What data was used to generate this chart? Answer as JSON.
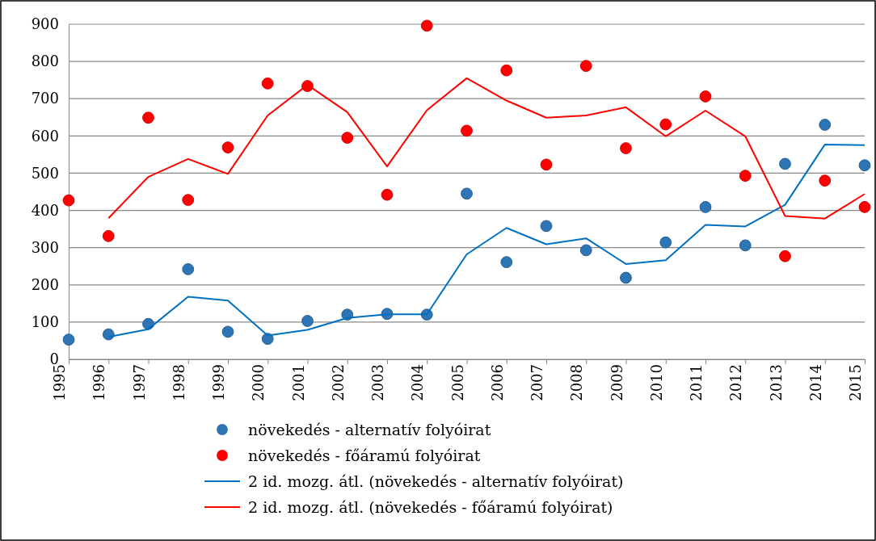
{
  "chart_data": {
    "type": "scatter",
    "categories": [
      "1995",
      "1996",
      "1997",
      "1998",
      "1999",
      "2000",
      "2001",
      "2002",
      "2003",
      "2004",
      "2005",
      "2006",
      "2007",
      "2008",
      "2009",
      "2010",
      "2011",
      "2012",
      "2013",
      "2014",
      "2015"
    ],
    "ylim": [
      0,
      900
    ],
    "yticks": [
      0,
      100,
      200,
      300,
      400,
      500,
      600,
      700,
      800,
      900
    ],
    "grid": "y",
    "legend": "bottom",
    "series": [
      {
        "name": "növekedés - alternatív folyóirat",
        "marker": "circle",
        "color": "#2e75b6",
        "values": [
          53,
          67,
          95,
          242,
          74,
          55,
          103,
          120,
          122,
          120,
          445,
          261,
          358,
          293,
          219,
          314,
          409,
          306,
          525,
          630,
          521
        ]
      },
      {
        "name": "növekedés - főáramú folyóirat",
        "marker": "circle",
        "color": "#ff0000",
        "values": [
          427,
          331,
          649,
          428,
          569,
          741,
          734,
          595,
          442,
          896,
          614,
          776,
          523,
          788,
          567,
          631,
          706,
          493,
          277,
          480,
          409
        ]
      },
      {
        "name": "2 id. mozg. átl. (növekedés - alternatív folyóirat)",
        "type": "line",
        "line_style": "solid",
        "color": "#0070c0",
        "values": [
          null,
          60,
          81,
          168,
          158,
          64,
          79,
          111,
          121,
          121,
          282,
          353,
          309,
          325,
          256,
          266,
          361,
          357,
          415,
          577,
          575
        ]
      },
      {
        "name": "2 id. mozg. átl. (növekedés - főáramú folyóirat)",
        "type": "line",
        "line_style": "solid",
        "color": "#ff0000",
        "values": [
          null,
          379,
          490,
          538,
          498,
          655,
          737,
          664,
          518,
          669,
          755,
          695,
          649,
          655,
          677,
          599,
          668,
          599,
          385,
          378,
          444
        ]
      }
    ]
  }
}
